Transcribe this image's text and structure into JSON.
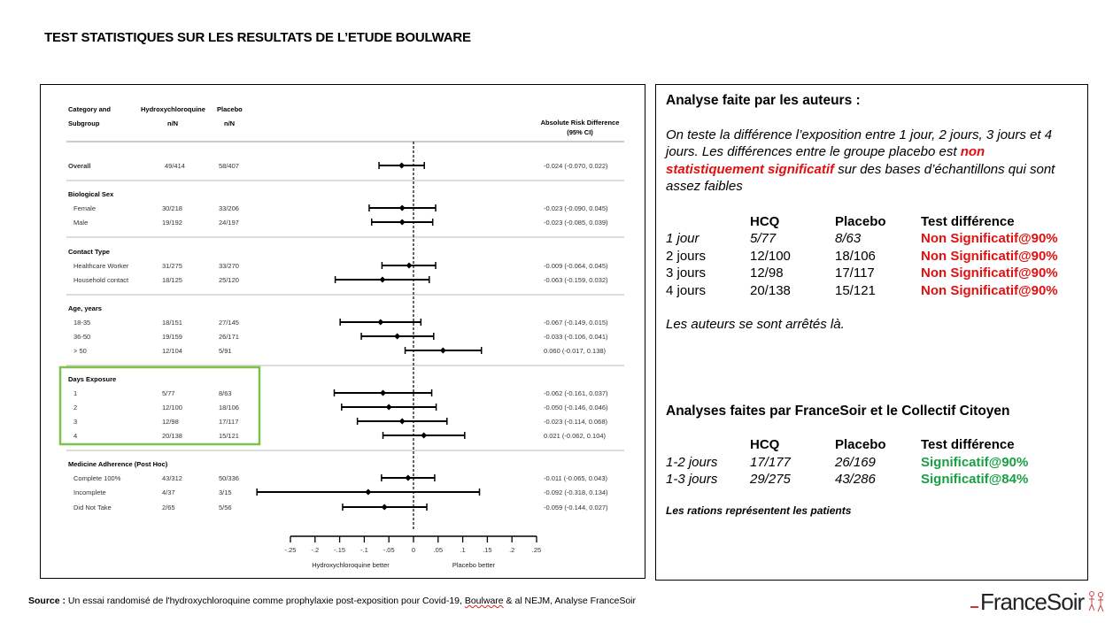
{
  "title": "TEST STATISTIQUES SUR LES RESULTATS DE L’ETUDE BOULWARE",
  "chart_data": {
    "type": "forest",
    "columns": {
      "category_line1": "Category and",
      "category_line2": "Subgroup",
      "hcq_line1": "Hydroxychloroquine",
      "hcq_line2": "n/N",
      "placebo_line1": "Placebo",
      "placebo_line2": "n/N",
      "ard_line1": "Absolute Risk Difference",
      "ard_line2": "(95% CI)"
    },
    "rows": [
      {
        "label": "Overall",
        "bold": true,
        "hcq": "49/414",
        "placebo": "58/407",
        "est": -0.024,
        "lo": -0.07,
        "hi": 0.022,
        "ci": "-0.024 (-0.070, 0.022)"
      },
      {
        "label": "Biological Sex",
        "header": true
      },
      {
        "label": "Female",
        "hcq": "30/218",
        "placebo": "33/206",
        "est": -0.023,
        "lo": -0.09,
        "hi": 0.045,
        "ci": "-0.023 (-0.090, 0.045)"
      },
      {
        "label": "Male",
        "hcq": "19/192",
        "placebo": "24/197",
        "est": -0.023,
        "lo": -0.085,
        "hi": 0.039,
        "ci": "-0.023 (-0.085, 0.039)"
      },
      {
        "label": "Contact Type",
        "header": true
      },
      {
        "label": "Healthcare Worker",
        "hcq": "31/275",
        "placebo": "33/270",
        "est": -0.009,
        "lo": -0.064,
        "hi": 0.045,
        "ci": "-0.009 (-0.064, 0.045)"
      },
      {
        "label": "Household contact",
        "hcq": "18/125",
        "placebo": "25/120",
        "est": -0.063,
        "lo": -0.159,
        "hi": 0.032,
        "ci": "-0.063 (-0.159, 0.032)"
      },
      {
        "label": "Age, years",
        "header": true
      },
      {
        "label": "18-35",
        "hcq": "18/151",
        "placebo": "27/145",
        "est": -0.067,
        "lo": -0.149,
        "hi": 0.015,
        "ci": "-0.067 (-0.149, 0.015)"
      },
      {
        "label": "36-50",
        "hcq": "19/159",
        "placebo": "26/171",
        "est": -0.033,
        "lo": -0.106,
        "hi": 0.041,
        "ci": "-0.033 (-0.106, 0.041)"
      },
      {
        "label": "> 50",
        "hcq": "12/104",
        "placebo": "5/91",
        "est": 0.06,
        "lo": -0.017,
        "hi": 0.138,
        "ci": "0.060 (-0.017, 0.138)"
      },
      {
        "label": "Days Exposure",
        "header": true
      },
      {
        "label": "1",
        "hcq": "5/77",
        "placebo": "8/63",
        "est": -0.062,
        "lo": -0.161,
        "hi": 0.037,
        "ci": "-0.062 (-0.161, 0.037)"
      },
      {
        "label": "2",
        "hcq": "12/100",
        "placebo": "18/106",
        "est": -0.05,
        "lo": -0.146,
        "hi": 0.046,
        "ci": "-0.050 (-0.146, 0.046)"
      },
      {
        "label": "3",
        "hcq": "12/98",
        "placebo": "17/117",
        "est": -0.023,
        "lo": -0.114,
        "hi": 0.068,
        "ci": "-0.023 (-0.114, 0.068)"
      },
      {
        "label": "4",
        "hcq": "20/138",
        "placebo": "15/121",
        "est": 0.021,
        "lo": -0.062,
        "hi": 0.104,
        "ci": "0.021 (-0.062, 0.104)"
      },
      {
        "label": "Medicine Adherence (Post Hoc)",
        "header": true
      },
      {
        "label": "Complete 100%",
        "hcq": "43/312",
        "placebo": "50/336",
        "est": -0.011,
        "lo": -0.065,
        "hi": 0.043,
        "ci": "-0.011 (-0.065, 0.043)"
      },
      {
        "label": "Incomplete",
        "hcq": "4/37",
        "placebo": "3/15",
        "est": -0.092,
        "lo": -0.318,
        "hi": 0.134,
        "ci": "-0.092 (-0.318, 0.134)"
      },
      {
        "label": "Did Not Take",
        "hcq": "2/65",
        "placebo": "5/56",
        "est": -0.059,
        "lo": -0.144,
        "hi": 0.027,
        "ci": "-0.059 (-0.144, 0.027)"
      }
    ],
    "x_ticks": [
      -0.25,
      -0.2,
      -0.15,
      -0.1,
      -0.05,
      0,
      0.05,
      0.1,
      0.15,
      0.2,
      0.25
    ],
    "x_tick_labels": [
      "-.25",
      "-.2",
      "-.15",
      "-.1",
      "-.05",
      "0",
      ".05",
      ".1",
      ".15",
      ".2",
      ".25"
    ],
    "xlim": [
      -0.25,
      0.25
    ],
    "reference_line": 0,
    "label_left": "Hydroxychloroquine better",
    "label_right": "Placebo better",
    "highlight_group": "Days Exposure",
    "highlight_color": "#7dc24b"
  },
  "panel": {
    "authors_heading": "Analyse faite par les auteurs :",
    "intro_a": "On teste la différence l’exposition entre 1 jour, 2 jours, 3 jours et 4 jours.  Les différences entre le groupe placebo est ",
    "intro_red": "non statistiquement significatif",
    "intro_b": " sur des bases d’échantillons qui sont assez faibles",
    "table1_headers": [
      "",
      "HCQ",
      "Placebo",
      "Test différence"
    ],
    "table1_rows": [
      {
        "label": "1 jour",
        "hcq": "5/77",
        "placebo": "8/63",
        "test": "Non Significatif@90%",
        "italic": true
      },
      {
        "label": "2 jours",
        "hcq": "12/100",
        "placebo": "18/106",
        "test": "Non Significatif@90%",
        "italic": false
      },
      {
        "label": "3 jours",
        "hcq": "12/98",
        "placebo": "17/117",
        "test": "Non Significatif@90%",
        "italic": false
      },
      {
        "label": "4 jours",
        "hcq": "20/138",
        "placebo": "15/121",
        "test": "Non Significatif@90%",
        "italic": false
      }
    ],
    "authors_stop": "Les auteurs se sont arrêtés là.",
    "fs_heading": "Analyses faites par FranceSoir et le Collectif Citoyen",
    "table2_headers": [
      "",
      "HCQ",
      "Placebo",
      "Test différence"
    ],
    "table2_rows": [
      {
        "label": "1-2 jours",
        "hcq": "17/177",
        "placebo": "26/169",
        "test": "Significatif@90%"
      },
      {
        "label": "1-3 jours",
        "hcq": "29/275",
        "placebo": "43/286",
        "test": "Significatif@84%"
      }
    ],
    "note": "Les rations représentent les patients",
    "red_color": "#e01010",
    "green_color": "#17a043"
  },
  "source": {
    "label": "Source  :",
    "text_a": " Un essai randomisé de l'hydroxychloroquine comme prophylaxie post-exposition pour Covid-19, ",
    "author": "Boulware",
    "text_b": " & al NEJM, Analyse FranceSoir"
  },
  "logo": {
    "text": "FranceSoir"
  }
}
